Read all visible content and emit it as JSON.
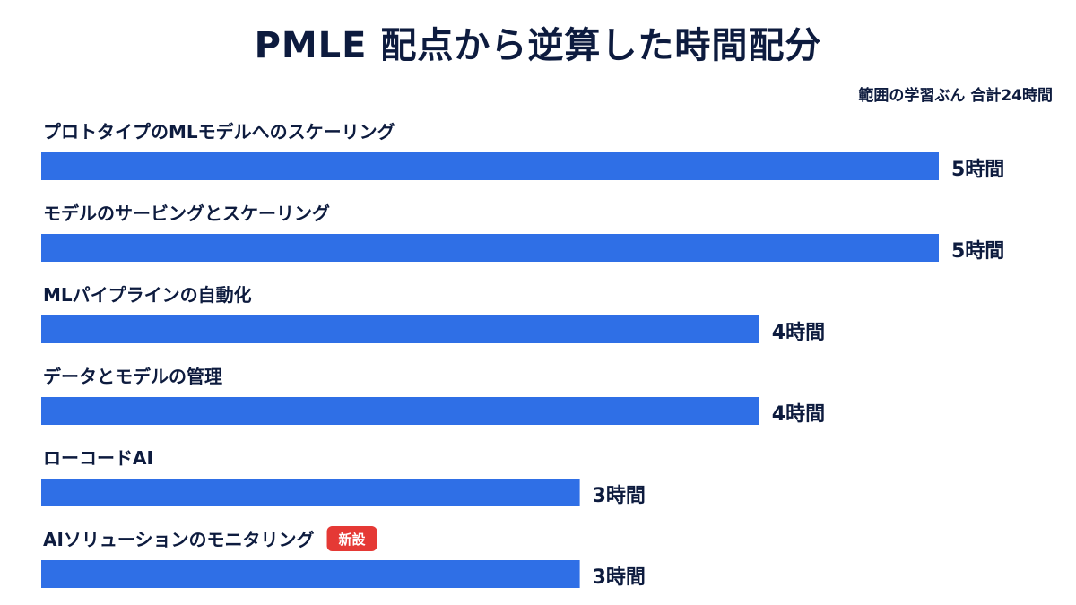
{
  "chart_data": {
    "type": "bar",
    "orientation": "horizontal",
    "title": "PMLE 配点から逆算した時間配分",
    "subtitle": "範囲の学習ぶん 合計24時間",
    "unit": "時間",
    "categories": [
      "プロトタイプのMLモデルへのスケーリング",
      "モデルのサービングとスケーリング",
      "MLパイプラインの自動化",
      "データとモデルの管理",
      "ローコードAI",
      "AIソリューションのモニタリング"
    ],
    "values": [
      5,
      5,
      4,
      4,
      3,
      3
    ],
    "value_labels": [
      "5時間",
      "5時間",
      "4時間",
      "4時間",
      "3時間",
      "3時間"
    ],
    "xlim": [
      0,
      5
    ],
    "badges": [
      null,
      null,
      null,
      null,
      null,
      "新設"
    ],
    "colors": {
      "bar": "#2f6fe6",
      "text": "#0d1b3e",
      "badge": "#e53935"
    }
  }
}
